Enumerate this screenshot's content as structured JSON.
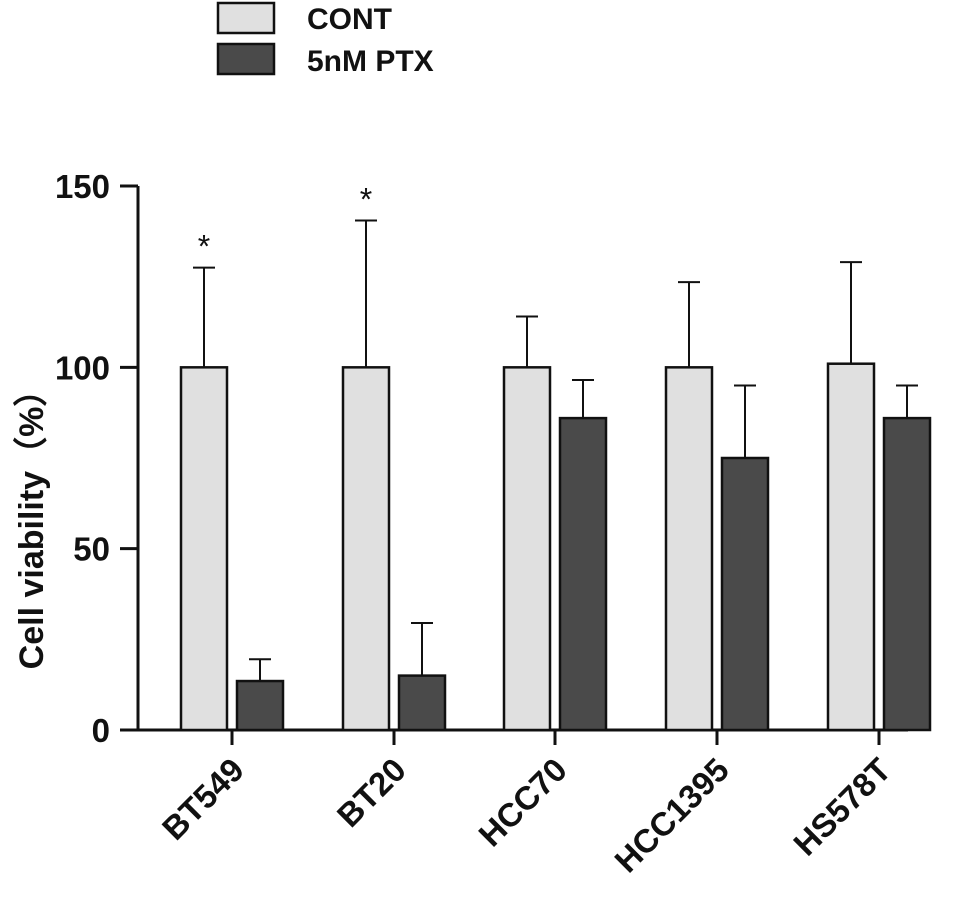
{
  "chart_data": {
    "type": "bar",
    "title": "",
    "xlabel": "",
    "ylabel": "Cell viability（%）",
    "ylim": [
      0,
      150
    ],
    "yticks": [
      "0",
      "50",
      "100",
      "150"
    ],
    "categories": [
      "BT549",
      "BT20",
      "HCC70",
      "HCC1395",
      "HS578T"
    ],
    "series": [
      {
        "name": "CONT",
        "color": "#e0e0e0",
        "values": [
          100,
          100,
          100,
          100,
          101
        ],
        "errors": [
          27.5,
          40.5,
          14,
          23.5,
          28
        ]
      },
      {
        "name": "5nM PTX",
        "color": "#4a4a4a",
        "values": [
          13.5,
          15,
          86,
          75,
          86
        ],
        "errors": [
          6,
          14.5,
          10.5,
          20,
          9
        ]
      }
    ],
    "annotations": [
      {
        "category": "BT549",
        "text": "*"
      },
      {
        "category": "BT20",
        "text": "*"
      }
    ],
    "legend": "top-left",
    "grid": false
  }
}
